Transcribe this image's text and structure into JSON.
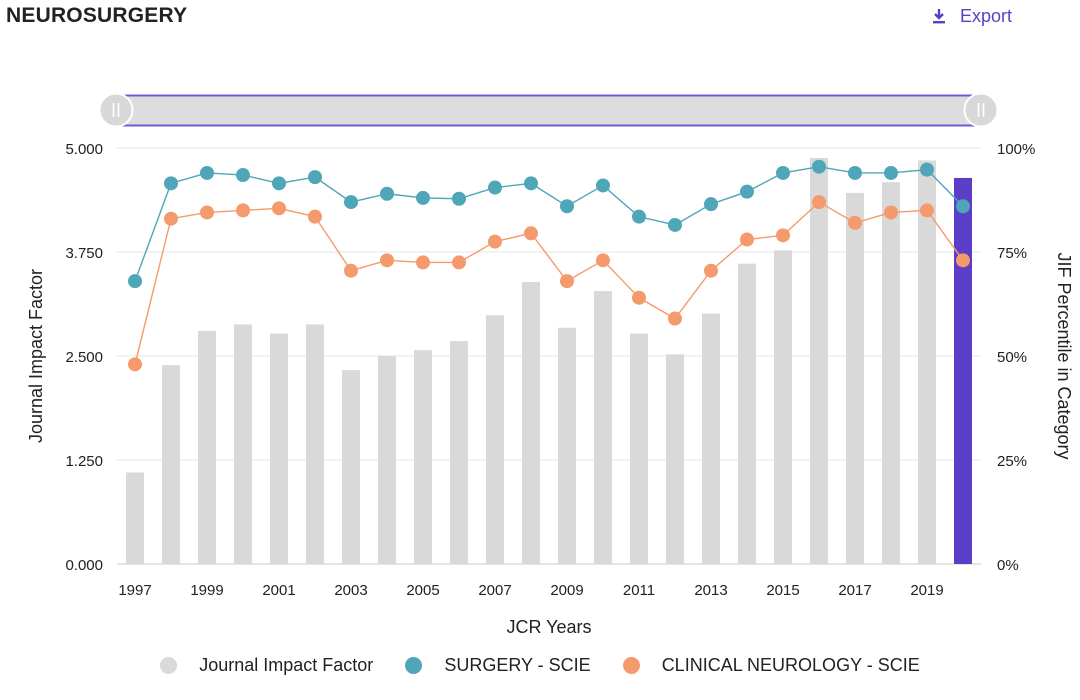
{
  "header": {
    "title": "NEUROSURGERY",
    "export_label": "Export"
  },
  "icons": {
    "export": "download-icon",
    "slider_handle": "grip-handle-icon"
  },
  "colors": {
    "jif_bar": "#d9d9d9",
    "jif_bar_highlight": "#5b3ec8",
    "surgery": "#4fa6b8",
    "neurology": "#f59a6c",
    "slider_track": "#dddddd",
    "slider_border": "#6a5ed6",
    "export": "#5b3ec8"
  },
  "chart_data": {
    "type": "bar",
    "xlabel": "JCR Years",
    "ylabel_left": "Journal Impact Factor",
    "ylabel_right": "JIF Percentile in Category",
    "ylim_left": [
      0,
      5
    ],
    "ylim_right": [
      0,
      100
    ],
    "yticks_left": [
      "0.000",
      "1.250",
      "2.500",
      "3.750",
      "5.000"
    ],
    "yticks_right": [
      "0%",
      "25%",
      "50%",
      "75%",
      "100%"
    ],
    "x_tick_labels": [
      "1997",
      "1999",
      "2001",
      "2003",
      "2005",
      "2007",
      "2009",
      "2011",
      "2013",
      "2015",
      "2017",
      "2019"
    ],
    "years": [
      1997,
      1998,
      1999,
      2000,
      2001,
      2002,
      2003,
      2004,
      2005,
      2006,
      2007,
      2008,
      2009,
      2010,
      2011,
      2012,
      2013,
      2014,
      2015,
      2016,
      2017,
      2018,
      2019,
      2020
    ],
    "highlight_year": 2020,
    "grid": true,
    "legend_position": "bottom",
    "series": [
      {
        "name": "Journal Impact Factor",
        "type": "bar",
        "axis": "left",
        "values": [
          1.1,
          2.39,
          2.8,
          2.88,
          2.77,
          2.88,
          2.33,
          2.5,
          2.57,
          2.68,
          2.99,
          3.39,
          2.84,
          3.28,
          2.77,
          2.52,
          3.01,
          3.61,
          3.77,
          4.88,
          4.46,
          4.59,
          4.85,
          4.64
        ]
      },
      {
        "name": "SURGERY - SCIE",
        "type": "line",
        "axis": "right",
        "values": [
          68,
          91.5,
          94,
          93.5,
          91.5,
          93,
          87,
          89,
          88,
          87.8,
          90.5,
          91.5,
          86,
          91,
          83.5,
          81.5,
          86.5,
          89.5,
          94,
          95.5,
          94,
          94,
          94.8,
          86
        ]
      },
      {
        "name": "CLINICAL NEUROLOGY - SCIE",
        "type": "line",
        "axis": "right",
        "values": [
          48,
          83,
          84.5,
          85,
          85.5,
          83.5,
          70.5,
          73,
          72.5,
          72.5,
          77.5,
          79.5,
          68,
          73,
          64,
          59,
          70.5,
          78,
          79,
          87,
          82,
          84.5,
          85,
          73
        ]
      }
    ]
  }
}
